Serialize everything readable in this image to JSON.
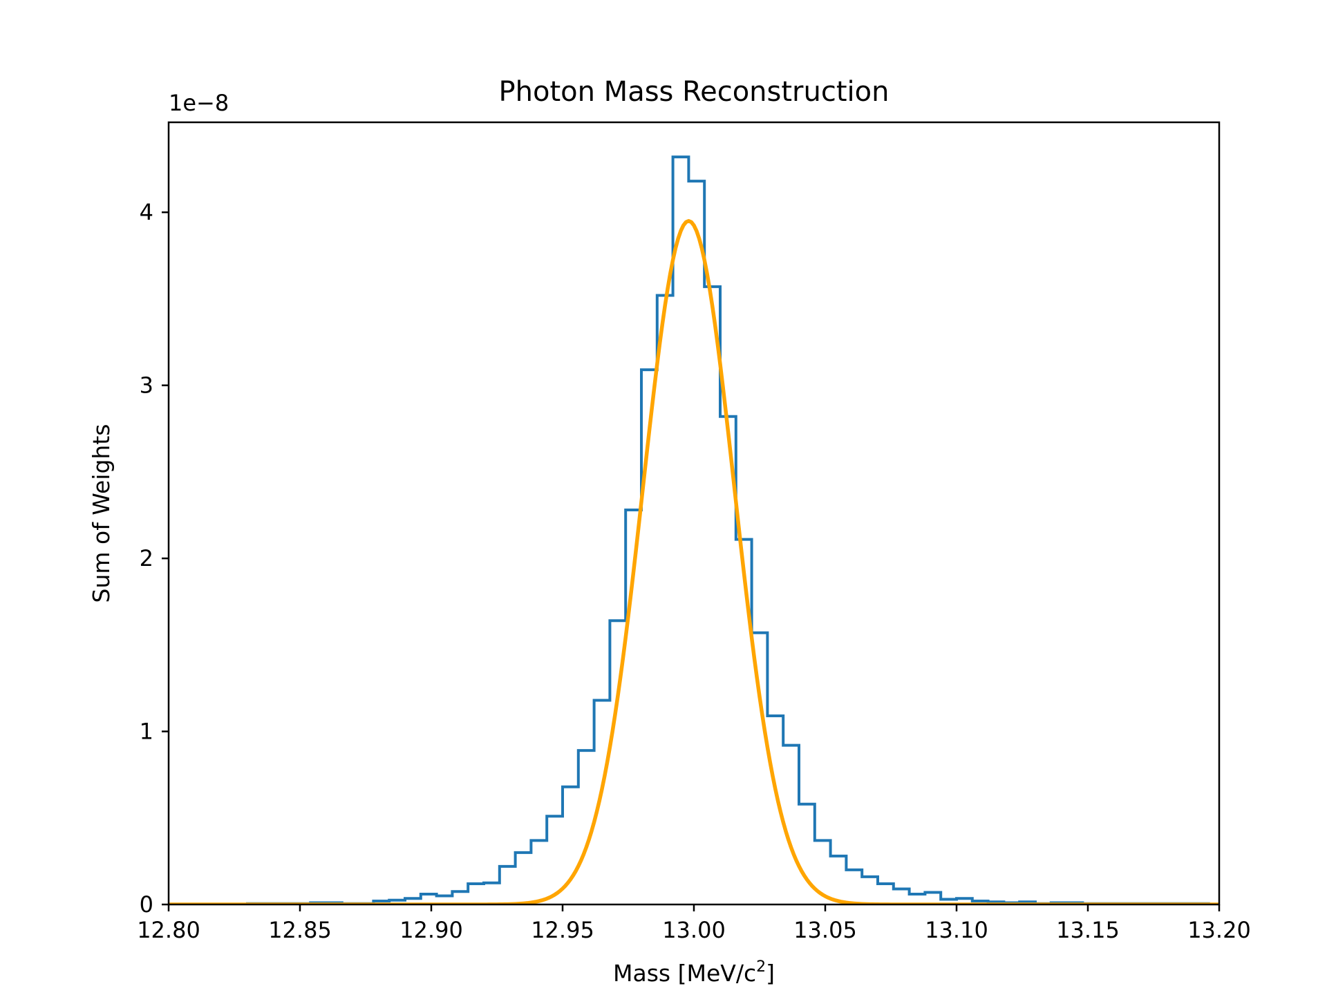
{
  "chart_data": {
    "type": "histogram",
    "title": "Photon Mass Reconstruction",
    "xlabel_main": "Mass [MeV/c",
    "xlabel_sup": "2",
    "xlabel_end": "]",
    "ylabel": "Sum of Weights",
    "y_offset_label": "1e−8",
    "xlim": [
      12.8,
      13.2
    ],
    "ylim": [
      0,
      4.52
    ],
    "y_scale": 1e-08,
    "xticks": [
      12.8,
      12.85,
      12.9,
      12.95,
      13.0,
      13.05,
      13.1,
      13.15,
      13.2
    ],
    "xtick_labels": [
      "12.80",
      "12.85",
      "12.90",
      "12.95",
      "13.00",
      "13.05",
      "13.10",
      "13.15",
      "13.20"
    ],
    "yticks": [
      0,
      1,
      2,
      3,
      4
    ],
    "ytick_labels": [
      "0",
      "1",
      "2",
      "3",
      "4"
    ],
    "grid": false,
    "series": [
      {
        "kind": "step-histogram",
        "color": "#1f77b4",
        "bin_edges": [
          12.8,
          12.806,
          12.812,
          12.818,
          12.824,
          12.83,
          12.836,
          12.842,
          12.848,
          12.854,
          12.86,
          12.866,
          12.872,
          12.878,
          12.884,
          12.89,
          12.896,
          12.902,
          12.908,
          12.914,
          12.92,
          12.926,
          12.932,
          12.938,
          12.944,
          12.95,
          12.956,
          12.962,
          12.968,
          12.974,
          12.98,
          12.986,
          12.992,
          12.998,
          13.004,
          13.01,
          13.016,
          13.022,
          13.028,
          13.034,
          13.04,
          13.046,
          13.052,
          13.058,
          13.064,
          13.07,
          13.076,
          13.082,
          13.088,
          13.094,
          13.1,
          13.106,
          13.112,
          13.118,
          13.124,
          13.13,
          13.136,
          13.142,
          13.148,
          13.154,
          13.16,
          13.166,
          13.172,
          13.178,
          13.184,
          13.19,
          13.196,
          13.2
        ],
        "values": [
          0.0,
          0.0,
          0.0,
          0.0,
          0.0,
          0.005,
          0.005,
          0.005,
          0.005,
          0.01,
          0.01,
          0.005,
          0.005,
          0.02,
          0.025,
          0.035,
          0.06,
          0.05,
          0.075,
          0.12,
          0.125,
          0.22,
          0.3,
          0.37,
          0.51,
          0.68,
          0.89,
          1.18,
          1.64,
          2.28,
          3.09,
          3.52,
          4.32,
          4.18,
          3.57,
          2.82,
          2.11,
          1.57,
          1.09,
          0.92,
          0.58,
          0.37,
          0.28,
          0.2,
          0.16,
          0.12,
          0.09,
          0.06,
          0.07,
          0.03,
          0.035,
          0.02,
          0.015,
          0.01,
          0.015,
          0.005,
          0.01,
          0.01,
          0.005,
          0.005,
          0.005,
          0.005,
          0.005,
          0.005,
          0.005,
          0.005,
          0.0
        ]
      },
      {
        "kind": "gaussian-fit",
        "color": "#ffa500",
        "amplitude": 3.95,
        "mean": 12.998,
        "sigma": 0.0175
      }
    ]
  }
}
